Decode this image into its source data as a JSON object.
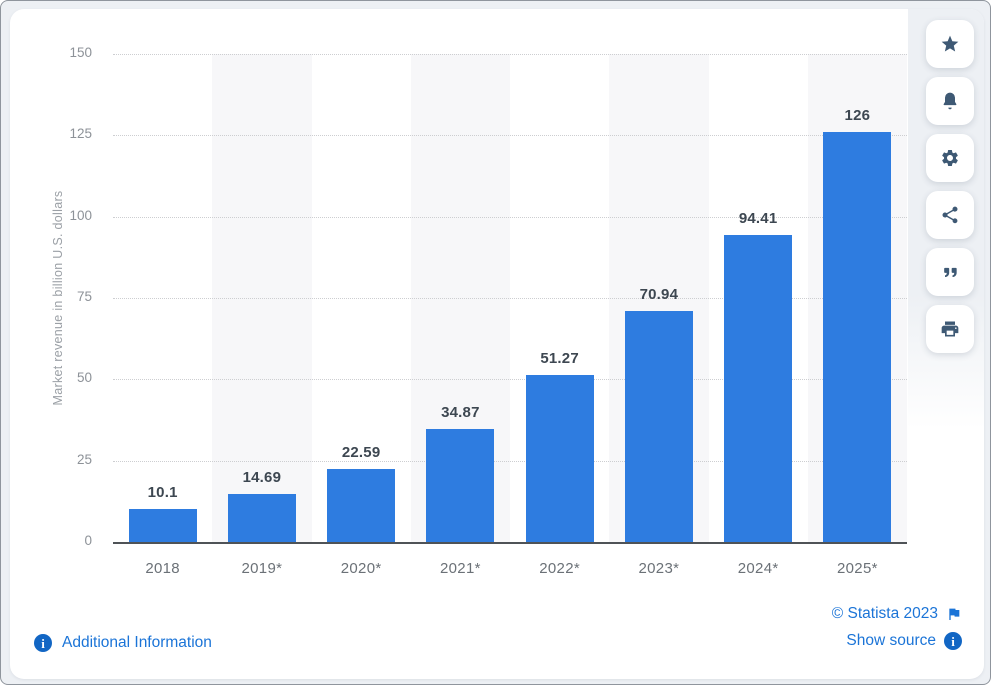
{
  "chart_data": {
    "type": "bar",
    "title": "",
    "categories": [
      "2018",
      "2019*",
      "2020*",
      "2021*",
      "2022*",
      "2023*",
      "2024*",
      "2025*"
    ],
    "values": [
      10.1,
      14.69,
      22.59,
      34.87,
      51.27,
      70.94,
      94.41,
      126
    ],
    "value_labels": [
      "10.1",
      "14.69",
      "22.59",
      "34.87",
      "51.27",
      "70.94",
      "94.41",
      "126"
    ],
    "xlabel": "",
    "ylabel": "Market revenue in billion U.S. dollars",
    "ylim": [
      0,
      150
    ],
    "yticks": [
      150,
      125,
      100,
      75,
      50,
      25,
      0
    ],
    "grid": "horizontal dotted gridlines, solid dark zero baseline",
    "legend": "none",
    "banded_columns": [
      1,
      3,
      5,
      7
    ]
  },
  "colors": {
    "bar": "#2e7ce0",
    "band": "#f7f7f9",
    "link": "#1b74d7",
    "icon": "#3e5974",
    "page_bg": "#edf0f4"
  },
  "toolbar": {
    "buttons": [
      {
        "name": "favorite",
        "icon": "star-icon"
      },
      {
        "name": "notifications",
        "icon": "bell-icon"
      },
      {
        "name": "settings",
        "icon": "gear-icon"
      },
      {
        "name": "share",
        "icon": "share-icon"
      },
      {
        "name": "cite",
        "icon": "quote-icon"
      },
      {
        "name": "print",
        "icon": "printer-icon"
      }
    ]
  },
  "footer": {
    "additional_information": "Additional Information",
    "copyright": "© Statista 2023",
    "show_source": "Show source"
  }
}
